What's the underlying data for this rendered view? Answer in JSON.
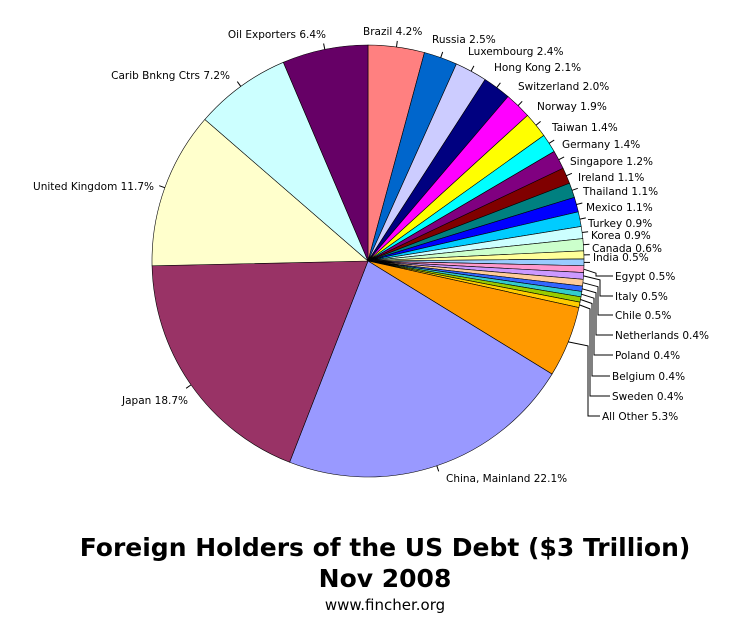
{
  "chart_data": {
    "type": "pie",
    "title": "Foreign Holders of the US Debt ($3 Trillion)",
    "title_line2": "Nov 2008",
    "subtitle": "www.fincher.org",
    "unit": "%",
    "legend": "none",
    "slices": [
      {
        "name": "Brazil",
        "value": 4.2,
        "label": "Brazil 4.2%",
        "color": "#ff8080"
      },
      {
        "name": "Russia",
        "value": 2.5,
        "label": "Russia 2.5%",
        "color": "#0066cc"
      },
      {
        "name": "Luxembourg",
        "value": 2.4,
        "label": "Luxembourg 2.4%",
        "color": "#ccccff"
      },
      {
        "name": "Hong Kong",
        "value": 2.1,
        "label": "Hong Kong 2.1%",
        "color": "#000080"
      },
      {
        "name": "Switzerland",
        "value": 2.0,
        "label": "Switzerland 2.0%",
        "color": "#ff00ff"
      },
      {
        "name": "Norway",
        "value": 1.9,
        "label": "Norway 1.9%",
        "color": "#ffff00"
      },
      {
        "name": "Taiwan",
        "value": 1.4,
        "label": "Taiwan 1.4%",
        "color": "#00ffff"
      },
      {
        "name": "Germany",
        "value": 1.4,
        "label": "Germany 1.4%",
        "color": "#800080"
      },
      {
        "name": "Singapore",
        "value": 1.2,
        "label": "Singapore 1.2%",
        "color": "#800000"
      },
      {
        "name": "Ireland",
        "value": 1.1,
        "label": "Ireland 1.1%",
        "color": "#008080"
      },
      {
        "name": "Thailand",
        "value": 1.1,
        "label": "Thailand 1.1%",
        "color": "#0000ff"
      },
      {
        "name": "Mexico",
        "value": 1.1,
        "label": "Mexico 1.1%",
        "color": "#00ccff"
      },
      {
        "name": "Turkey",
        "value": 0.9,
        "label": "Turkey 0.9%",
        "color": "#ccffff"
      },
      {
        "name": "Korea",
        "value": 0.9,
        "label": "Korea 0.9%",
        "color": "#ccffcc"
      },
      {
        "name": "Canada",
        "value": 0.6,
        "label": "Canada 0.6%",
        "color": "#ffff99"
      },
      {
        "name": "India",
        "value": 0.5,
        "label": "India 0.5%",
        "color": "#99ccff"
      },
      {
        "name": "Egypt",
        "value": 0.5,
        "label": "Egypt 0.5%",
        "color": "#ff99cc"
      },
      {
        "name": "Italy",
        "value": 0.5,
        "label": "Italy 0.5%",
        "color": "#cc99ff"
      },
      {
        "name": "Chile",
        "value": 0.5,
        "label": "Chile 0.5%",
        "color": "#ffcc99"
      },
      {
        "name": "Netherlands",
        "value": 0.4,
        "label": "Netherlands 0.4%",
        "color": "#3366ff"
      },
      {
        "name": "Poland",
        "value": 0.4,
        "label": "Poland 0.4%",
        "color": "#33cccc"
      },
      {
        "name": "Belgium",
        "value": 0.4,
        "label": "Belgium 0.4%",
        "color": "#99cc00"
      },
      {
        "name": "Sweden",
        "value": 0.4,
        "label": "Sweden 0.4%",
        "color": "#ffcc00"
      },
      {
        "name": "All Other",
        "value": 5.3,
        "label": "All Other 5.3%",
        "color": "#ff9900"
      },
      {
        "name": "China, Mainland",
        "value": 22.1,
        "label": "China, Mainland 22.1%",
        "color": "#9999ff"
      },
      {
        "name": "Japan",
        "value": 18.7,
        "label": "Japan 18.7%",
        "color": "#993366"
      },
      {
        "name": "United Kingdom",
        "value": 11.7,
        "label": "United Kingdom 11.7%",
        "color": "#ffffcc"
      },
      {
        "name": "Carib Bnkng Ctrs",
        "value": 7.2,
        "label": "Carib Bnkng Ctrs 7.2%",
        "color": "#ccffff"
      },
      {
        "name": "Oil Exporters",
        "value": 6.4,
        "label": "Oil Exporters 6.4%",
        "color": "#660066"
      }
    ]
  }
}
